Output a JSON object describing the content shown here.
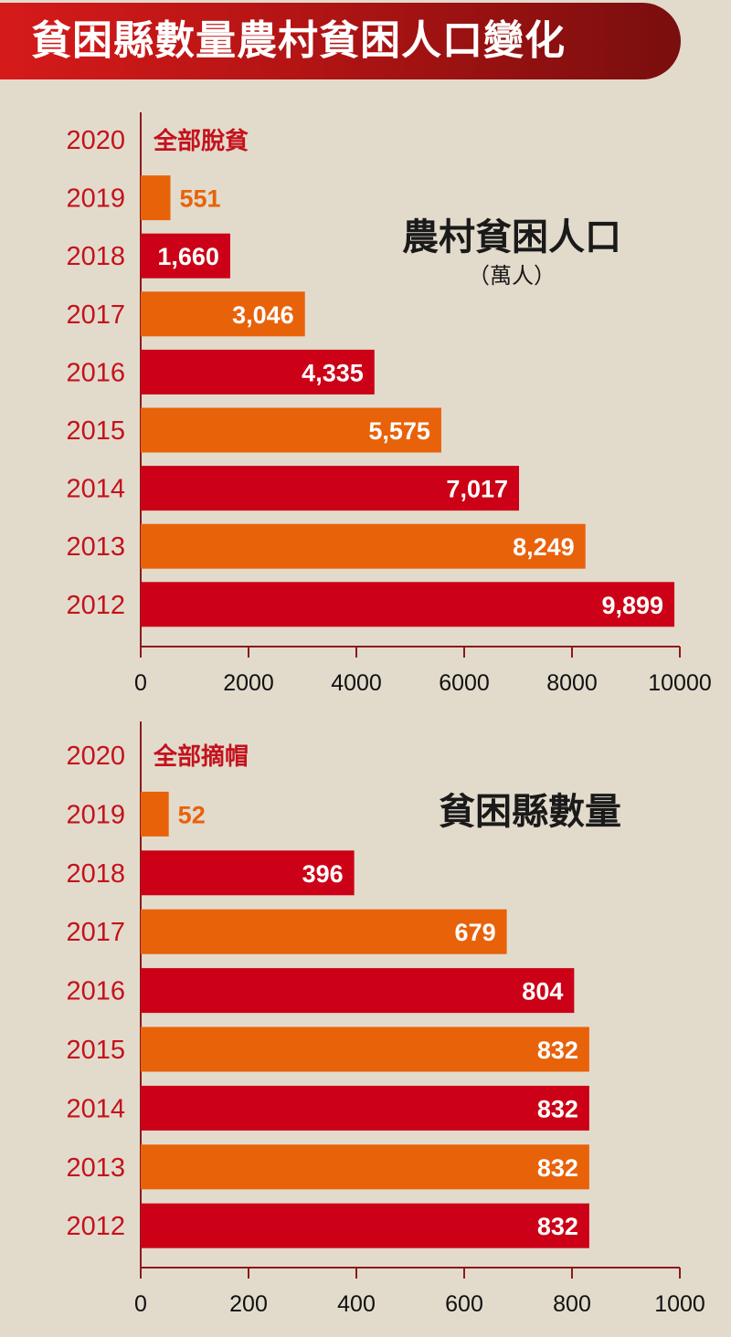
{
  "title": "貧困縣數量農村貧困人口變化",
  "colors": {
    "red": "#cc0016",
    "orange": "#e8620a",
    "axis": "#8b1a1a",
    "label_red": "#c4121c"
  },
  "chart_data": [
    {
      "type": "bar",
      "orientation": "horizontal",
      "title": "農村貧困人口",
      "unit": "（萬人）",
      "categories": [
        "2020",
        "2019",
        "2018",
        "2017",
        "2016",
        "2015",
        "2014",
        "2013",
        "2012"
      ],
      "values": [
        null,
        551,
        1660,
        3046,
        4335,
        5575,
        7017,
        8249,
        9899
      ],
      "value_labels": [
        "全部脫貧",
        "551",
        "1,660",
        "3,046",
        "4,335",
        "5,575",
        "7,017",
        "8,249",
        "9,899"
      ],
      "bar_colors": [
        "",
        "#e8620a",
        "#cc0016",
        "#e8620a",
        "#cc0016",
        "#e8620a",
        "#cc0016",
        "#e8620a",
        "#cc0016"
      ],
      "xlim": [
        0,
        10000
      ],
      "xticks": [
        "0",
        "2000",
        "4000",
        "6000",
        "8000",
        "10000"
      ],
      "grid": false
    },
    {
      "type": "bar",
      "orientation": "horizontal",
      "title": "貧困縣數量",
      "unit": "",
      "categories": [
        "2020",
        "2019",
        "2018",
        "2017",
        "2016",
        "2015",
        "2014",
        "2013",
        "2012"
      ],
      "values": [
        null,
        52,
        396,
        679,
        804,
        832,
        832,
        832,
        832
      ],
      "value_labels": [
        "全部摘帽",
        "52",
        "396",
        "679",
        "804",
        "832",
        "832",
        "832",
        "832"
      ],
      "bar_colors": [
        "",
        "#e8620a",
        "#cc0016",
        "#e8620a",
        "#cc0016",
        "#e8620a",
        "#cc0016",
        "#e8620a",
        "#cc0016"
      ],
      "xlim": [
        0,
        1000
      ],
      "xticks": [
        "0",
        "200",
        "400",
        "600",
        "800",
        "1000"
      ],
      "grid": false
    }
  ]
}
